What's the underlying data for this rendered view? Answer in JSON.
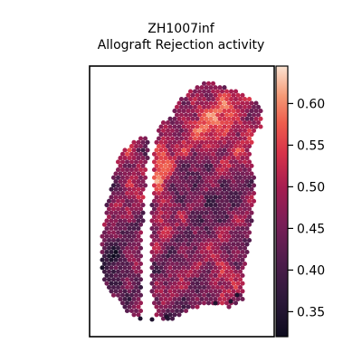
{
  "chart_data": {
    "type": "heatmap",
    "title_lines": [
      "ZH1007inf",
      "Allograft Rejection activity"
    ],
    "colorbar": {
      "colormap": "rocket",
      "range": [
        0.32,
        0.645
      ],
      "ticks": [
        "0.35",
        "0.40",
        "0.45",
        "0.50",
        "0.55",
        "0.60"
      ],
      "tick_values": [
        0.35,
        0.4,
        0.45,
        0.5,
        0.55,
        0.6
      ]
    },
    "axes": {
      "xticks": false,
      "yticks": false,
      "grid": false
    },
    "spatial_spots": {
      "description": "Spatial transcriptomics spots; color encodes activity score",
      "value_min": 0.33,
      "value_max": 0.64,
      "high_regions": [
        "upper-right lobe (~0.55-0.62)",
        "left edge of right lobe near gap (~0.58)"
      ],
      "low_regions": [
        "bottom-left edge (~0.33-0.38)"
      ]
    }
  }
}
